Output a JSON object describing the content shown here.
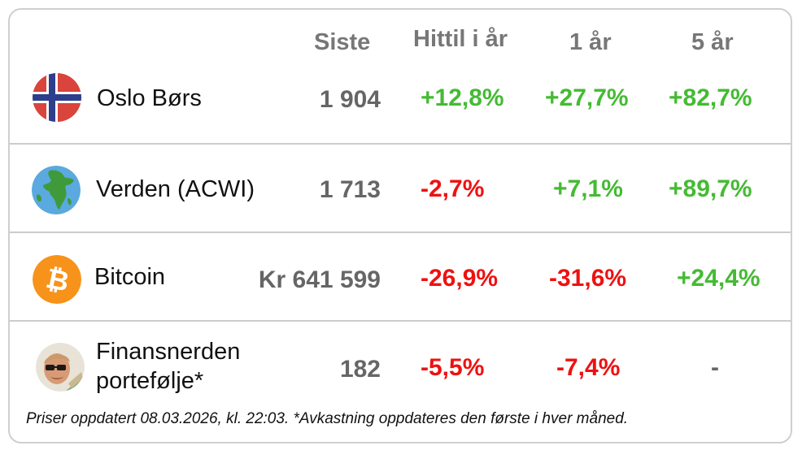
{
  "headers": {
    "last": "Siste",
    "ytd": "Hittil i år",
    "y1": "1 år",
    "y5": "5 år"
  },
  "rows": [
    {
      "icon": "norway-flag-icon",
      "name": "Oslo Børs",
      "last": "1 904",
      "ytd": "+12,8%",
      "y1": "+27,7%",
      "y5": "+82,7%"
    },
    {
      "icon": "globe-icon",
      "name": "Verden (ACWI)",
      "last": "1 713",
      "ytd": "-2,7%",
      "y1": "+7,1%",
      "y5": "+89,7%"
    },
    {
      "icon": "bitcoin-icon",
      "name": "Bitcoin",
      "last": "Kr 641 599",
      "ytd": "-26,9%",
      "y1": "-31,6%",
      "y5": "+24,4%"
    },
    {
      "icon": "avatar-icon",
      "name_line1": "Finansnerden",
      "name_line2": "portefølje*",
      "last": "182",
      "ytd": "-5,5%",
      "y1": "-7,4%",
      "y5": "-"
    }
  ],
  "footer": "Priser oppdatert 08.03.2026, kl. 22:03. *Avkastning oppdateres den første i hver måned.",
  "colors": {
    "positive": "#44bb33",
    "negative": "#ee1111",
    "neutral": "#666666",
    "header": "#777777"
  }
}
